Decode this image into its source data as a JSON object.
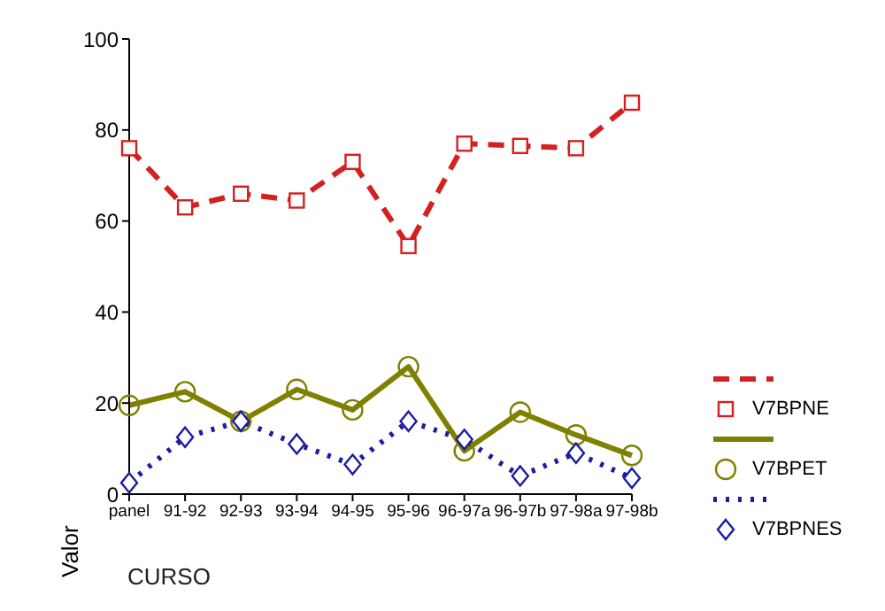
{
  "chart_data": {
    "type": "line",
    "xlabel": "CURSO",
    "ylabel": "Valor",
    "categories": [
      "panel",
      "91-92",
      "92-93",
      "93-94",
      "94-95",
      "95-96",
      "96-97a",
      "96-97b",
      "97-98a",
      "97-98b"
    ],
    "ylim": [
      0,
      100
    ],
    "yticks": [
      0,
      20,
      40,
      60,
      80,
      100
    ],
    "grid": false,
    "legend": "right",
    "series": [
      {
        "name": "V7BPNE",
        "color": "#d42020",
        "marker": "square",
        "line_style": "dashed",
        "values": [
          76,
          63,
          66,
          64.5,
          73,
          54.5,
          77,
          76.5,
          76,
          86
        ]
      },
      {
        "name": "V7BPET",
        "color": "#808000",
        "marker": "circle",
        "line_style": "solid",
        "values": [
          19.5,
          22.5,
          16,
          23,
          18.5,
          28,
          9.5,
          18,
          13,
          8.5
        ]
      },
      {
        "name": "V7BPNES",
        "color": "#1c1ca0",
        "marker": "diamond",
        "line_style": "dotted",
        "values": [
          2.5,
          12.5,
          16,
          11,
          6.5,
          16,
          12,
          4,
          9,
          3.5
        ]
      }
    ]
  }
}
